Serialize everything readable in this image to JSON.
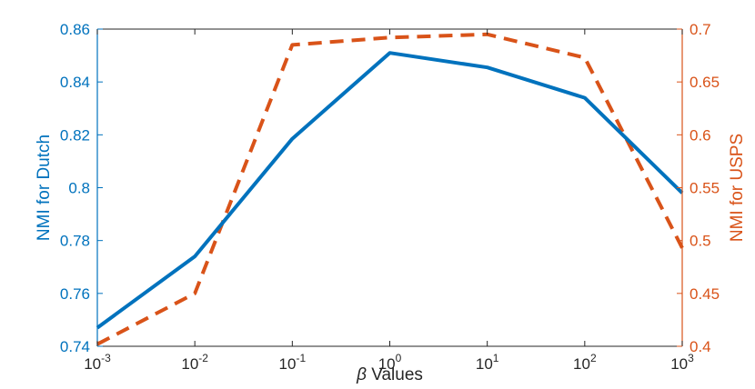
{
  "chart_data": {
    "type": "line",
    "xscale": "log",
    "xlabel_symbol": "β",
    "xlabel_text": " Values",
    "x": [
      0.001,
      0.01,
      0.1,
      1,
      10,
      100,
      1000
    ],
    "xticks": [
      {
        "base": "10",
        "exp": "-3"
      },
      {
        "base": "10",
        "exp": "-2"
      },
      {
        "base": "10",
        "exp": "-1"
      },
      {
        "base": "10",
        "exp": "0"
      },
      {
        "base": "10",
        "exp": "1"
      },
      {
        "base": "10",
        "exp": "2"
      },
      {
        "base": "10",
        "exp": "3"
      }
    ],
    "xlim": [
      0.001,
      1000
    ],
    "grid": false,
    "legend": "none",
    "left_axis": {
      "label": "NMI for Dutch",
      "ylim": [
        0.74,
        0.86
      ],
      "ticks": [
        "0.74",
        "0.76",
        "0.78",
        "0.8",
        "0.82",
        "0.84",
        "0.86"
      ],
      "color": "#0072BD"
    },
    "right_axis": {
      "label": "NMI for USPS",
      "ylim": [
        0.4,
        0.7
      ],
      "ticks": [
        "0.4",
        "0.45",
        "0.5",
        "0.55",
        "0.6",
        "0.65",
        "0.7"
      ],
      "color": "#D95319"
    },
    "series": [
      {
        "name": "NMI for Dutch",
        "axis": "left",
        "style": "solid",
        "color": "#0072BD",
        "values": [
          0.747,
          0.774,
          0.8185,
          0.851,
          0.8455,
          0.834,
          0.798
        ]
      },
      {
        "name": "NMI for USPS",
        "axis": "right",
        "style": "dashed",
        "color": "#D95319",
        "values": [
          0.402,
          0.45,
          0.685,
          0.692,
          0.695,
          0.673,
          0.493
        ]
      }
    ]
  }
}
